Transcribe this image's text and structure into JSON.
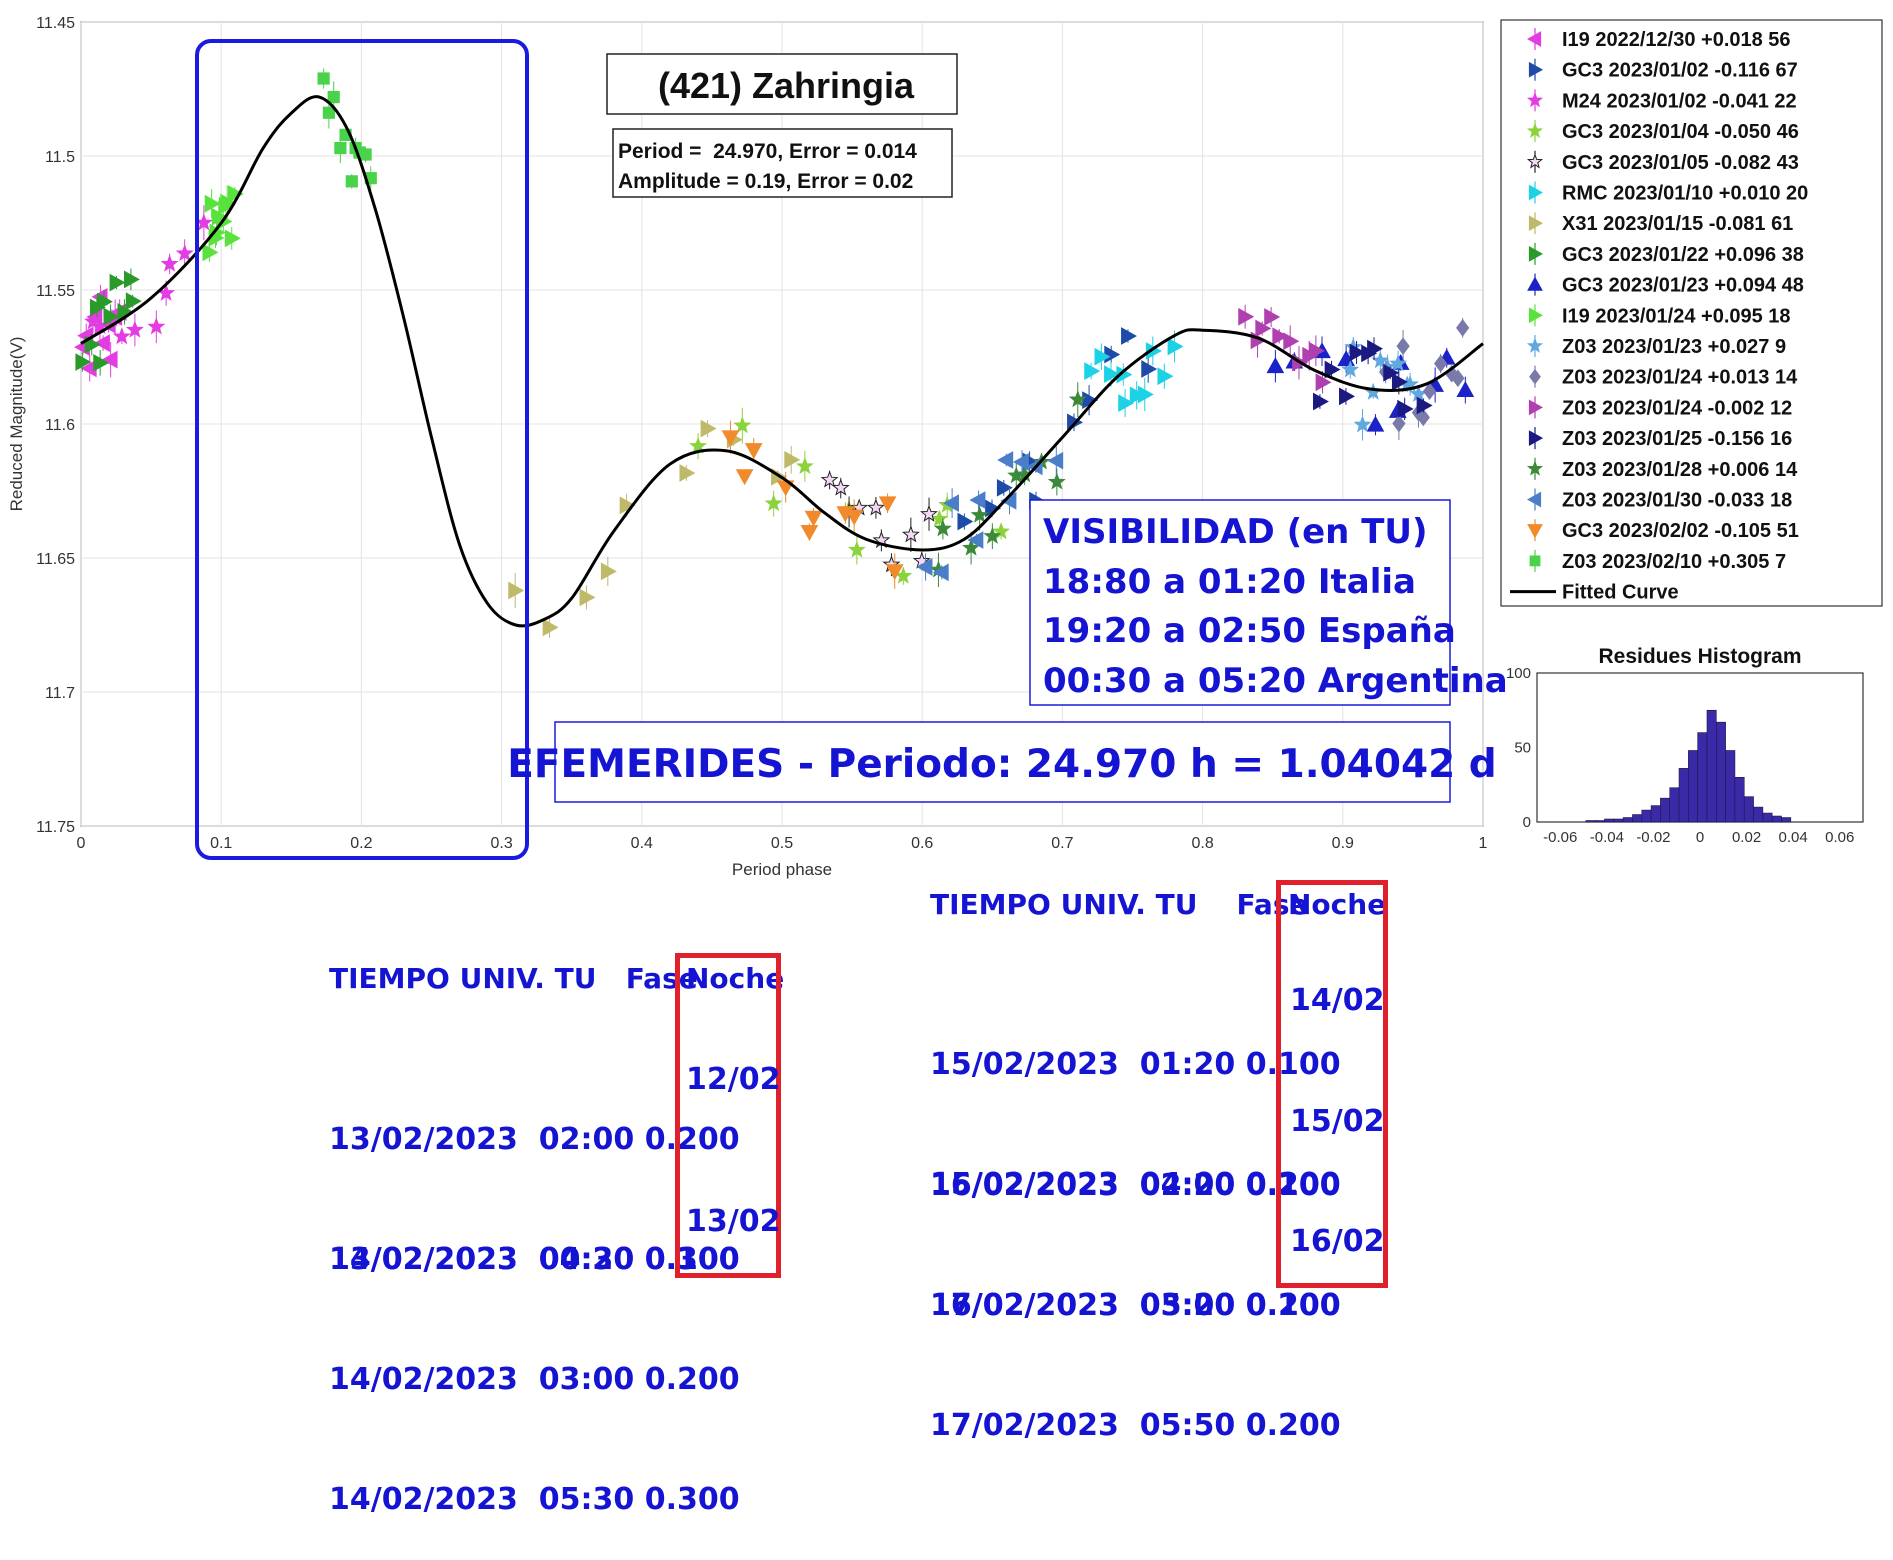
{
  "chart_data": [
    {
      "type": "scatter",
      "title": "(421) Zahringia",
      "info_lines": [
        "Period =  24.970, Error = 0.014",
        "Amplitude = 0.19, Error = 0.02"
      ],
      "xlabel": "Period phase",
      "ylabel": "Reduced Magnitude(V)",
      "xlim": [
        0,
        1
      ],
      "ylim": [
        11.75,
        11.45
      ],
      "y_reversed": true,
      "grid": true,
      "xticks": [
        "0",
        "0.1",
        "0.2",
        "0.3",
        "0.4",
        "0.5",
        "0.6",
        "0.7",
        "0.8",
        "0.9",
        "1"
      ],
      "yticks": [
        "11.45",
        "11.5",
        "11.55",
        "11.6",
        "11.65",
        "11.7",
        "11.75"
      ],
      "legend_position": "right",
      "series": [
        {
          "name": "I19 2022/12/30   +0.018    56",
          "color": "#e23ce2",
          "marker": "triangle-left"
        },
        {
          "name": "GC3 2023/01/02   -0.116    67",
          "color": "#1e4aa8",
          "marker": "triangle-right"
        },
        {
          "name": "M24 2023/01/02   -0.041    22",
          "color": "#e23ce2",
          "marker": "star"
        },
        {
          "name": "GC3 2023/01/04   -0.050    46",
          "color": "#8cd23c",
          "marker": "star"
        },
        {
          "name": "GC3 2023/01/05   -0.082    43",
          "color": "#222222",
          "marker": "star"
        },
        {
          "name": "RMC 2023/01/10   +0.010    20",
          "color": "#1ed2e6",
          "marker": "triangle-right"
        },
        {
          "name": "X31 2023/01/15   -0.081    61",
          "color": "#bfba6a",
          "marker": "triangle-right"
        },
        {
          "name": "GC3 2023/01/22   +0.096    38",
          "color": "#2a9a2a",
          "marker": "triangle-right"
        },
        {
          "name": "GC3 2023/01/23   +0.094    48",
          "color": "#1a22c8",
          "marker": "triangle-up"
        },
        {
          "name": "I19 2023/01/24   +0.095    18",
          "color": "#5ae23c",
          "marker": "triangle-right"
        },
        {
          "name": "Z03 2023/01/23   +0.027     9",
          "color": "#60a8e0",
          "marker": "star"
        },
        {
          "name": "Z03 2023/01/24   +0.013    14",
          "color": "#7a7aaa",
          "marker": "diamond"
        },
        {
          "name": "Z03 2023/01/24   -0.002    12",
          "color": "#b040b0",
          "marker": "triangle-right"
        },
        {
          "name": "Z03 2023/01/25   -0.156    16",
          "color": "#1a1a80",
          "marker": "triangle-right"
        },
        {
          "name": "Z03 2023/01/28   +0.006    14",
          "color": "#3a8a3a",
          "marker": "star"
        },
        {
          "name": "Z03 2023/01/30   -0.033    18",
          "color": "#4a7ec8",
          "marker": "triangle-left"
        },
        {
          "name": "GC3 2023/02/02   -0.105    51",
          "color": "#f08a2a",
          "marker": "triangle-down"
        },
        {
          "name": "Z03 2023/02/10   +0.305     7",
          "color": "#4ad24a",
          "marker": "square"
        }
      ],
      "fitted_curve": {
        "name": "Fitted Curve",
        "x": [
          0,
          0.05,
          0.1,
          0.13,
          0.15,
          0.17,
          0.19,
          0.21,
          0.23,
          0.25,
          0.27,
          0.29,
          0.31,
          0.33,
          0.35,
          0.38,
          0.42,
          0.46,
          0.5,
          0.53,
          0.56,
          0.6,
          0.63,
          0.66,
          0.7,
          0.74,
          0.78,
          0.8,
          0.84,
          0.88,
          0.92,
          0.96,
          1
        ],
        "y": [
          11.57,
          11.553,
          11.525,
          11.497,
          11.484,
          11.478,
          11.49,
          11.52,
          11.56,
          11.605,
          11.645,
          11.667,
          11.675,
          11.673,
          11.665,
          11.64,
          11.615,
          11.61,
          11.62,
          11.633,
          11.643,
          11.647,
          11.643,
          11.628,
          11.605,
          11.582,
          11.567,
          11.565,
          11.568,
          11.58,
          11.587,
          11.585,
          11.57
        ]
      }
    },
    {
      "type": "bar",
      "title": "Residues Histogram",
      "xticks": [
        "-0.06",
        "-0.04",
        "-0.02",
        "0",
        "0.02",
        "0.04",
        "0.06"
      ],
      "yticks": [
        "0",
        "50",
        "100"
      ],
      "xlim": [
        -0.07,
        0.07
      ],
      "ylim": [
        0,
        100
      ],
      "bin_centers": [
        -0.047,
        -0.043,
        -0.039,
        -0.035,
        -0.031,
        -0.027,
        -0.023,
        -0.019,
        -0.015,
        -0.011,
        -0.007,
        -0.003,
        0.001,
        0.005,
        0.009,
        0.013,
        0.017,
        0.021,
        0.025,
        0.029,
        0.033,
        0.037
      ],
      "values": [
        1,
        1,
        2,
        2,
        3,
        5,
        8,
        11,
        16,
        23,
        36,
        48,
        60,
        75,
        67,
        48,
        30,
        17,
        10,
        6,
        4,
        3
      ]
    }
  ],
  "visibility_box": {
    "lines": [
      "VISIBILIDAD (en TU)",
      "18:80 a 01:20 Italia",
      "19:20 a 02:50 España",
      "00:30 a 05:20 Argentina"
    ]
  },
  "ephemeris_title": "EFEMERIDES - Periodo: 24.970 h = 1.04042 d",
  "table_left": {
    "header_time": "TIEMPO UNIV. TU   Fase",
    "header_night": "Noche",
    "group1": [
      "13/02/2023  02:00 0.200",
      "13/02/2023  04:30 0.300"
    ],
    "group1_night": "12/02",
    "group2": [
      "14/02/2023  00:20 0.100",
      "14/02/2023  03:00 0.200",
      "14/02/2023  05:30 0.300"
    ],
    "group2_night": "13/02"
  },
  "table_right": {
    "header_time": "TIEMPO UNIV. TU    Fase",
    "header_night": "Noche",
    "group1": [
      "15/02/2023  01:20 0.100",
      "15/02/2023  04:00 0.200"
    ],
    "group1_night": "14/02",
    "group2": [
      "16/02/2023  02:20 0.100",
      "16/02/2023  05:00 0.200"
    ],
    "group2_night": "15/02",
    "group3": [
      "17/02/2023  03:20 0.100",
      "17/02/2023  05:50 0.200"
    ],
    "group3_night": "16/02"
  }
}
